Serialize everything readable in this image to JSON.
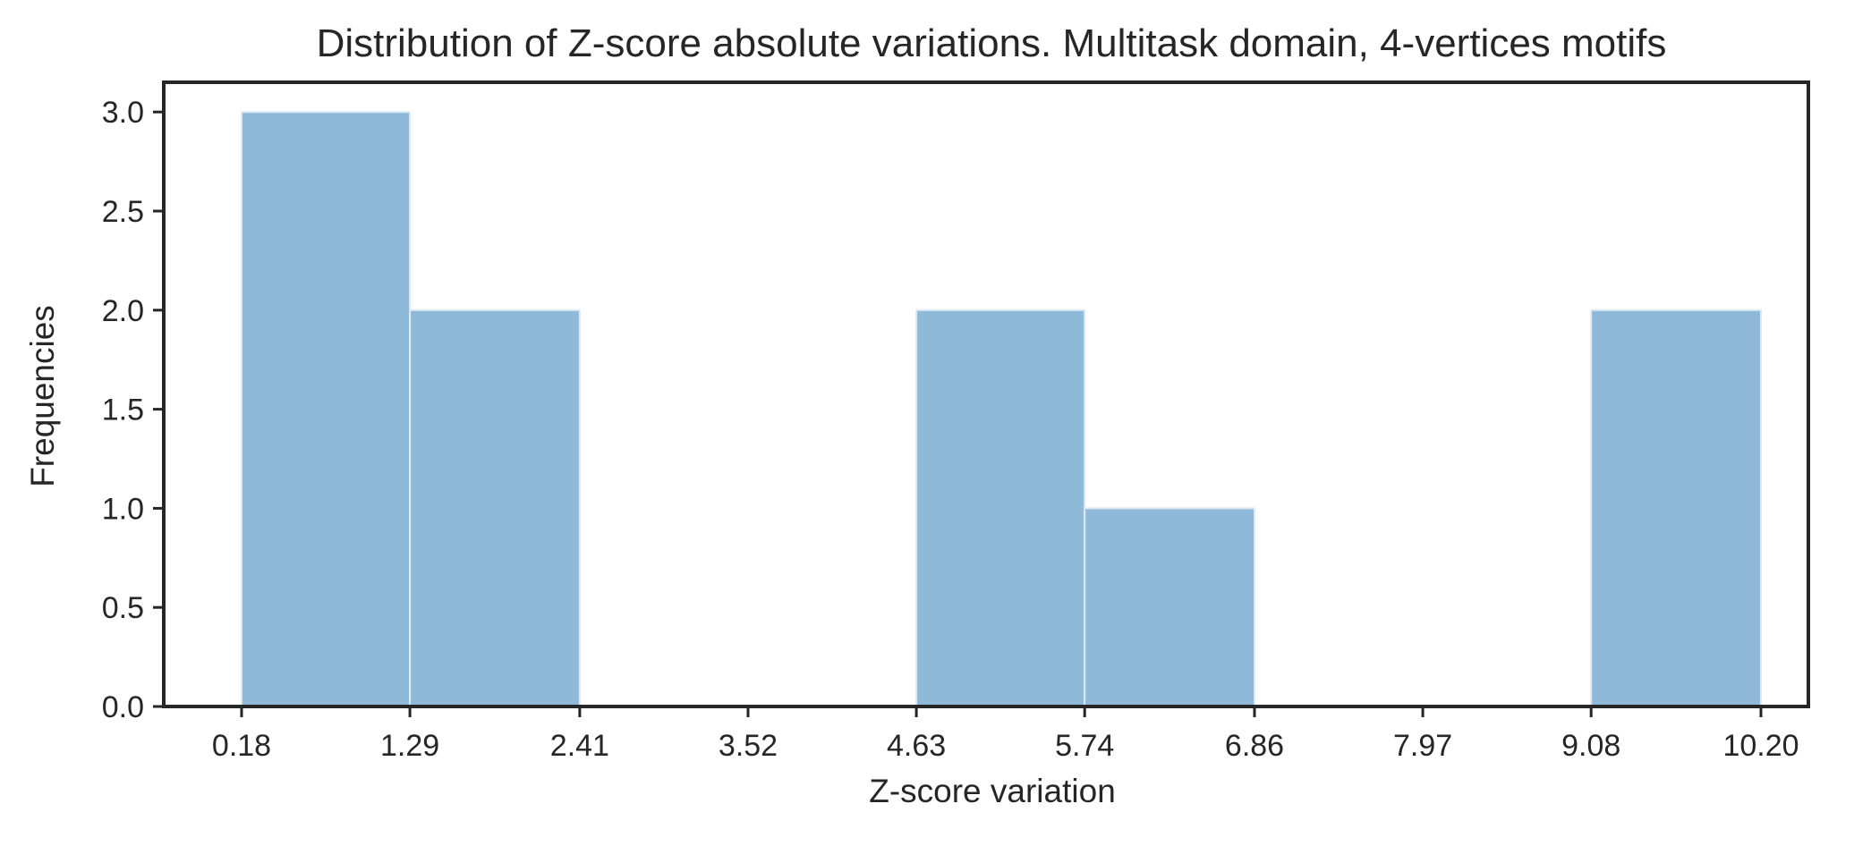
{
  "chart_data": {
    "type": "bar",
    "title": "Distribution of Z-score absolute variations. Multitask domain, 4-vertices motifs",
    "xlabel": "Z-score variation",
    "ylabel": "Frequencies",
    "bin_edges": [
      0.18,
      1.29,
      2.41,
      3.52,
      4.63,
      5.74,
      6.86,
      7.97,
      9.08,
      10.2
    ],
    "values": [
      3,
      2,
      0,
      0,
      2,
      1,
      0,
      0,
      2
    ],
    "x_ticks": [
      "0.18",
      "1.29",
      "2.41",
      "3.52",
      "4.63",
      "5.74",
      "6.86",
      "7.97",
      "9.08",
      "10.20"
    ],
    "y_ticks": [
      "0.0",
      "0.5",
      "1.0",
      "1.5",
      "2.0",
      "2.5",
      "3.0"
    ],
    "ylim": [
      0,
      3.15
    ],
    "grid": false,
    "colors": {
      "bar": "#8fb9d9",
      "bar_edge": "#dce9f3",
      "axes": "#262626"
    }
  }
}
